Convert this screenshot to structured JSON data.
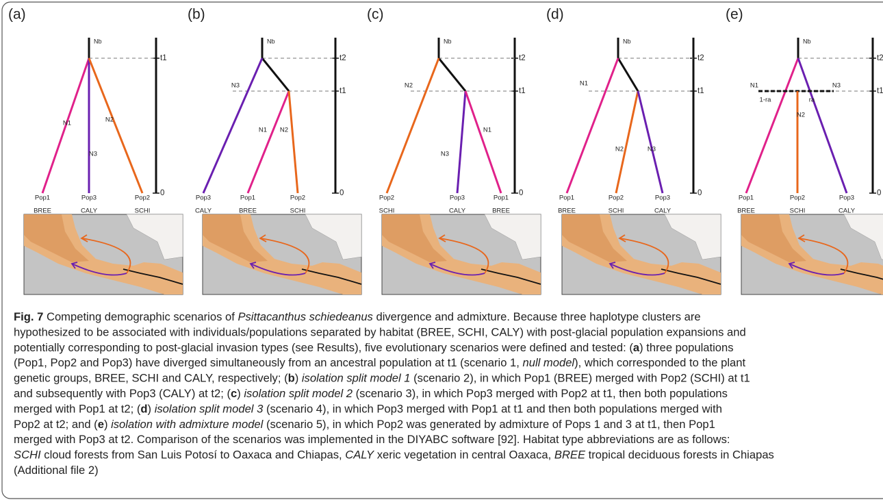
{
  "panels": [
    {
      "label": "(a)",
      "root": "Nb",
      "times": [
        "t1",
        "0"
      ],
      "branches": [
        "N1",
        "N3",
        "N2"
      ],
      "pops": [
        "Pop1",
        "Pop3",
        "Pop2"
      ],
      "habitats": [
        "BREE",
        "CALY",
        "SCHI"
      ]
    },
    {
      "label": "(b)",
      "root": "Nb",
      "times": [
        "t2",
        "t1",
        "0"
      ],
      "branches": [
        "N3",
        "N1",
        "N2"
      ],
      "pops": [
        "Pop3",
        "Pop1",
        "Pop2"
      ],
      "habitats": [
        "CALY",
        "BREE",
        "SCHI"
      ]
    },
    {
      "label": "(c)",
      "root": "Nb",
      "times": [
        "t2",
        "t1",
        "0"
      ],
      "branches": [
        "N2",
        "N3",
        "N1"
      ],
      "pops": [
        "Pop2",
        "Pop3",
        "Pop1"
      ],
      "habitats": [
        "SCHI",
        "CALY",
        "BREE"
      ]
    },
    {
      "label": "(d)",
      "root": "Nb",
      "times": [
        "t2",
        "t1",
        "0"
      ],
      "branches": [
        "N1",
        "N2",
        "N3"
      ],
      "pops": [
        "Pop1",
        "Pop2",
        "Pop3"
      ],
      "habitats": [
        "BREE",
        "SCHI",
        "CALY"
      ]
    },
    {
      "label": "(e)",
      "root": "Nb",
      "times": [
        "t2",
        "t1",
        "0"
      ],
      "branches": [
        "N1",
        "N3",
        "1-ra",
        "ra",
        "N2"
      ],
      "pops": [
        "Pop1",
        "Pop2",
        "Pop3"
      ],
      "habitats": [
        "BREE",
        "SCHI",
        "CALY"
      ]
    }
  ],
  "caption": {
    "lines": [
      [
        {
          "text": "Fig. 7",
          "style": "bold"
        },
        {
          "text": " Competing demographic scenarios of "
        },
        {
          "text": "Psittacanthus schiedeanus",
          "style": "italic"
        },
        {
          "text": " divergence and admixture. Because three haplotype clusters are"
        }
      ],
      [
        {
          "text": "hypothesized to be associated with individuals/populations separated by habitat (BREE, SCHI, CALY) with post-glacial population expansions and"
        }
      ],
      [
        {
          "text": "potentially corresponding to post-glacial invasion types (see Results), five evolutionary scenarios were defined and tested: ("
        },
        {
          "text": "a",
          "style": "bold"
        },
        {
          "text": ") three populations"
        }
      ],
      [
        {
          "text": "(Pop1, Pop2 and Pop3) have diverged simultaneously from an ancestral population at t1 (scenario 1, "
        },
        {
          "text": "null model",
          "style": "italic"
        },
        {
          "text": "), which corresponded to the plant"
        }
      ],
      [
        {
          "text": "genetic groups, BREE, SCHI and CALY, respectively; ("
        },
        {
          "text": "b",
          "style": "bold"
        },
        {
          "text": ") "
        },
        {
          "text": "isolation split model 1",
          "style": "italic"
        },
        {
          "text": " (scenario 2), in which Pop1 (BREE) merged with Pop2 (SCHI) at t1"
        }
      ],
      [
        {
          "text": "and subsequently with Pop3 (CALY) at t2; ("
        },
        {
          "text": "c",
          "style": "bold"
        },
        {
          "text": ") "
        },
        {
          "text": "isolation split model 2",
          "style": "italic"
        },
        {
          "text": " (scenario 3), in which Pop3 merged with Pop2 at t1, then both populations"
        }
      ],
      [
        {
          "text": "merged with Pop1 at t2; ("
        },
        {
          "text": "d",
          "style": "bold"
        },
        {
          "text": ") "
        },
        {
          "text": "isolation split model 3",
          "style": "italic"
        },
        {
          "text": " (scenario 4), in which Pop3 merged with Pop1 at t1 and then both populations merged with"
        }
      ],
      [
        {
          "text": "Pop2 at t2; and ("
        },
        {
          "text": "e",
          "style": "bold"
        },
        {
          "text": ") "
        },
        {
          "text": "isolation with admixture model",
          "style": "italic"
        },
        {
          "text": " (scenario 5), in which Pop2 was generated by admixture of Pops 1 and 3 at t1, then Pop1"
        }
      ],
      [
        {
          "text": "merged with Pop3 at t2. Comparison of the scenarios was implemented in the DIYABC software [92]. Habitat type abbreviations are as follows:"
        }
      ],
      [
        {
          "text": "SCHI",
          "style": "italic"
        },
        {
          "text": " cloud forests from San Luis Potosí to Oaxaca and Chiapas, "
        },
        {
          "text": "CALY",
          "style": "italic"
        },
        {
          "text": " xeric vegetation in central Oaxaca, "
        },
        {
          "text": "BREE",
          "style": "italic"
        },
        {
          "text": " tropical deciduous forests in Chiapas"
        }
      ],
      [
        {
          "text": "(Additional file 2)"
        }
      ]
    ]
  }
}
